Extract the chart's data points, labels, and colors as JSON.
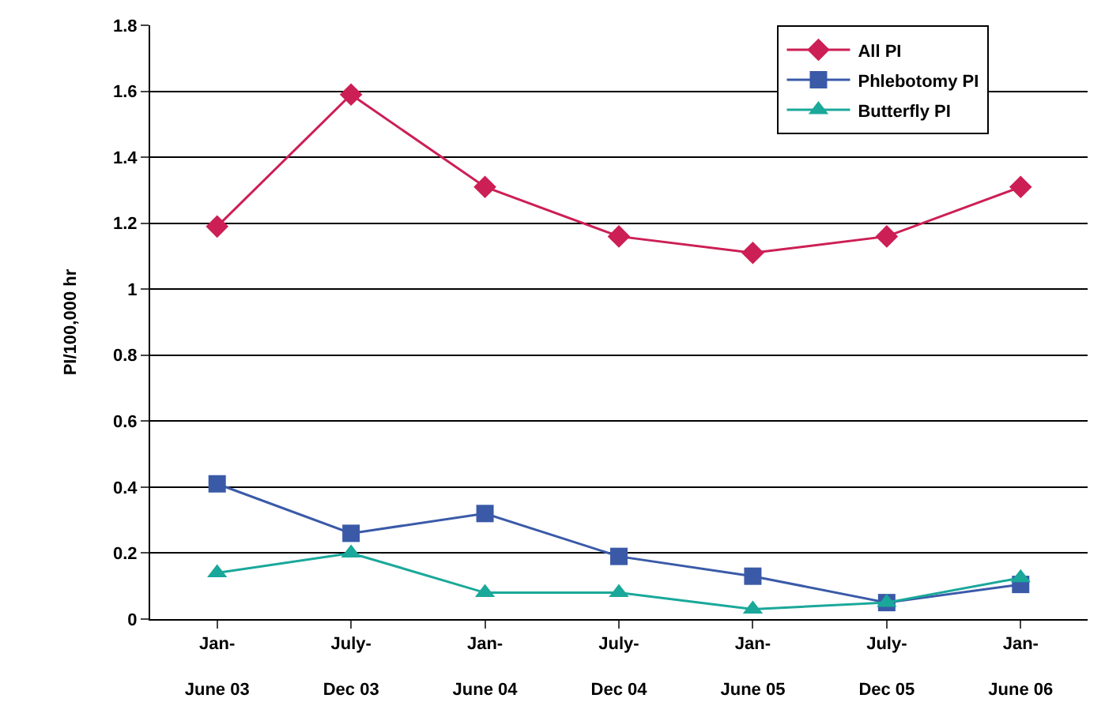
{
  "chart_data": {
    "type": "line",
    "ylabel": "PI/100,000 hr",
    "categories": [
      "Jan-\nJune 03",
      "July-\nDec 03",
      "Jan-\nJune 04",
      "July-\nDec 04",
      "Jan-\nJune 05",
      "July-\nDec 05",
      "Jan-\nJune 06"
    ],
    "series": [
      {
        "name": "All PI",
        "color": "#cc1f55",
        "marker": "diamond",
        "values": [
          1.19,
          1.59,
          1.31,
          1.16,
          1.11,
          1.16,
          1.31
        ]
      },
      {
        "name": "Phlebotomy PI",
        "color": "#3a5aa8",
        "marker": "square",
        "values": [
          0.41,
          0.26,
          0.32,
          0.19,
          0.13,
          0.05,
          0.105
        ]
      },
      {
        "name": "Butterfly PI",
        "color": "#1aa89a",
        "marker": "triangle",
        "values": [
          0.14,
          0.2,
          0.08,
          0.08,
          0.03,
          0.05,
          0.125
        ]
      }
    ],
    "ylim": [
      0,
      1.8
    ],
    "yticks": [
      0,
      0.2,
      0.4,
      0.6,
      0.8,
      1,
      1.2,
      1.4,
      1.6,
      1.8
    ],
    "grid": "y",
    "legend": "top right"
  }
}
